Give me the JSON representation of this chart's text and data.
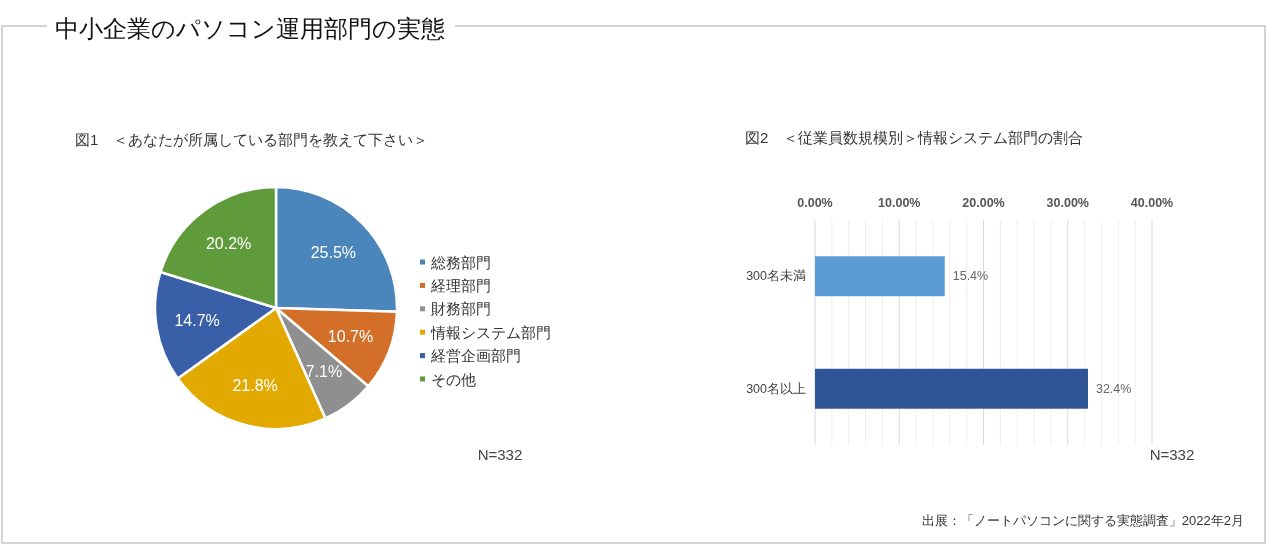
{
  "chart_data": [
    {
      "type": "other",
      "title": "中小企業のパソコン運用部門の実態",
      "annotations": [
        "出展：「ノートパソコンに関する実態調査」2022年2月"
      ]
    },
    {
      "type": "pie",
      "title": "図1　＜あなたが所属している部門を教えて下さい＞",
      "categories": [
        "総務部門",
        "経理部門",
        "財務部門",
        "情報システム部門",
        "経営企画部門",
        "その他"
      ],
      "values": [
        25.5,
        10.7,
        7.1,
        21.8,
        14.7,
        20.2
      ],
      "colors": [
        "#4a86bb",
        "#d36f28",
        "#8f8f8f",
        "#e2a900",
        "#3a5fa9",
        "#5f9a3b"
      ],
      "value_labels": [
        "25.5%",
        "10.7%",
        "7.1%",
        "21.8%",
        "14.7%",
        "20.2%"
      ],
      "legend": "right",
      "annotations": [
        "N=332"
      ]
    },
    {
      "type": "bar",
      "orientation": "horizontal",
      "title": "図2　＜従業員数規模別＞情報システム部門の割合",
      "categories": [
        "300名未満",
        "300名以上"
      ],
      "values": [
        15.4,
        32.4
      ],
      "colors": [
        "#5b9bd5",
        "#2f5597"
      ],
      "value_labels": [
        "15.4%",
        "32.4%"
      ],
      "xlim": [
        0,
        40
      ],
      "xticks": [
        {
          "value": 0,
          "label": "0.00%"
        },
        {
          "value": 2,
          "label": null
        },
        {
          "value": 4,
          "label": null
        },
        {
          "value": 6,
          "label": null
        },
        {
          "value": 8,
          "label": null
        },
        {
          "value": 10,
          "label": "10.00%"
        },
        {
          "value": 12,
          "label": null
        },
        {
          "value": 14,
          "label": null
        },
        {
          "value": 16,
          "label": null
        },
        {
          "value": 18,
          "label": null
        },
        {
          "value": 20,
          "label": "20.00%"
        },
        {
          "value": 22,
          "label": null
        },
        {
          "value": 24,
          "label": null
        },
        {
          "value": 26,
          "label": null
        },
        {
          "value": 28,
          "label": null
        },
        {
          "value": 30,
          "label": "30.00%"
        },
        {
          "value": 32,
          "label": null
        },
        {
          "value": 34,
          "label": null
        },
        {
          "value": 36,
          "label": null
        },
        {
          "value": 38,
          "label": null
        },
        {
          "value": 40,
          "label": "40.00%"
        }
      ],
      "grid": "x",
      "annotations": [
        "N=332"
      ]
    }
  ]
}
